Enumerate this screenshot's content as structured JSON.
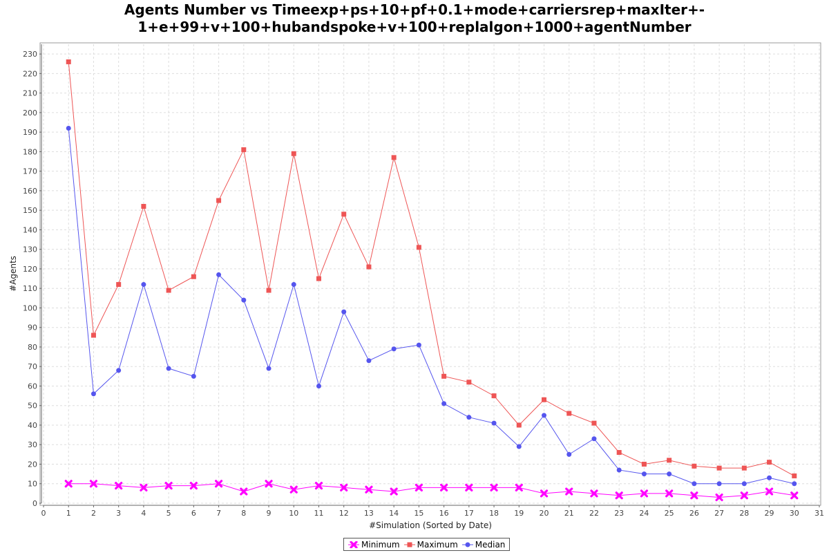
{
  "chart_data": {
    "type": "line",
    "title_lines": [
      "Agents Number vs Timeexp+ps+10+pf+0.1+mode+carriersrep+maxIter+-",
      "1+e+99+v+100+hubandspoke+v+100+replalgon+1000+agentNumber"
    ],
    "xlabel": "#Simulation (Sorted by Date)",
    "ylabel": "#Agents",
    "xlim": [
      0,
      31
    ],
    "ylim": [
      0,
      235
    ],
    "x_ticks": [
      0,
      1,
      2,
      3,
      4,
      5,
      6,
      7,
      8,
      9,
      10,
      11,
      12,
      13,
      14,
      15,
      16,
      17,
      18,
      19,
      20,
      21,
      22,
      23,
      24,
      25,
      26,
      27,
      28,
      29,
      30,
      31
    ],
    "y_ticks": [
      0,
      10,
      20,
      30,
      40,
      50,
      60,
      70,
      80,
      90,
      100,
      110,
      120,
      130,
      140,
      150,
      160,
      170,
      180,
      190,
      200,
      210,
      220,
      230
    ],
    "grid": true,
    "legend_position": "bottom",
    "x": [
      1,
      2,
      3,
      4,
      5,
      6,
      7,
      8,
      9,
      10,
      11,
      12,
      13,
      14,
      15,
      16,
      17,
      18,
      19,
      20,
      21,
      22,
      23,
      24,
      25,
      26,
      27,
      28,
      29,
      30
    ],
    "series": [
      {
        "name": "Minimum",
        "color": "#ff00ff",
        "marker": "x-marker-icon",
        "values": [
          10,
          10,
          9,
          8,
          9,
          9,
          10,
          6,
          10,
          7,
          9,
          8,
          7,
          6,
          8,
          8,
          8,
          8,
          8,
          5,
          6,
          5,
          4,
          5,
          5,
          4,
          3,
          4,
          6,
          4
        ]
      },
      {
        "name": "Maximum",
        "color": "#ee5555",
        "marker": "square-marker-icon",
        "values": [
          226,
          86,
          112,
          152,
          109,
          116,
          155,
          181,
          109,
          179,
          115,
          148,
          121,
          177,
          131,
          65,
          62,
          55,
          40,
          53,
          46,
          41,
          26,
          20,
          22,
          19,
          18,
          18,
          21,
          14
        ]
      },
      {
        "name": "Median",
        "color": "#5555ee",
        "marker": "circle-marker-icon",
        "values": [
          192,
          56,
          68,
          112,
          69,
          65,
          117,
          104,
          69,
          112,
          60,
          98,
          73,
          79,
          81,
          51,
          44,
          41,
          29,
          45,
          25,
          33,
          17,
          15,
          15,
          10,
          10,
          10,
          13,
          10
        ]
      }
    ]
  }
}
